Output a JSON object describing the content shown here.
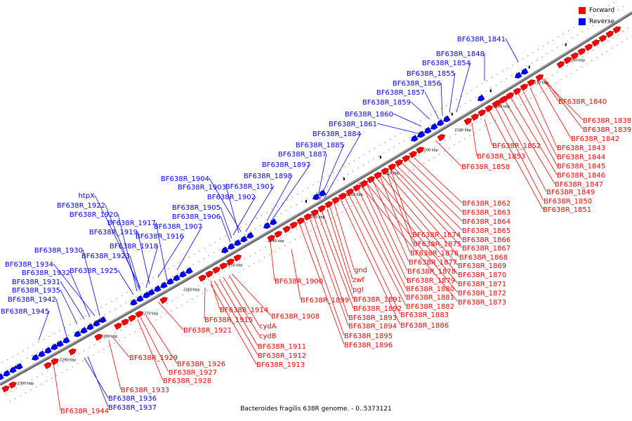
{
  "caption": "Bacteroides fragilis 638R genome. - 0..5373121",
  "legend": [
    {
      "label": "Forward",
      "color": "#ff0000"
    },
    {
      "label": "Reverse",
      "color": "#0000ff"
    }
  ],
  "colors": {
    "forward": "#ff0000",
    "reverse": "#0000ff",
    "forward_dark": "#aa0000",
    "reverse_dark": "#0000a0",
    "axis": "#777777"
  },
  "ticks": [
    "2160 kbp",
    "2170 kbp",
    "2180 kbp",
    "2190 kbp",
    "2200 kbp",
    "2210 kbp",
    "2220 kbp",
    "2230 kbp",
    "2240 kbp",
    "2250 kbp",
    "2260 kbp",
    "2270 kbp",
    "2280 kbp",
    "2290 kbp",
    "2300 kbp"
  ],
  "reverse_labels": [
    "BF638R_1841",
    "BF638R_1848",
    "BF638R_1854",
    "BF638R_1855",
    "BF638R_1856",
    "BF638R_1857",
    "BF638R_1859",
    "BF638R_1860",
    "BF638R_1861",
    "BF638R_1884",
    "BF638R_1885",
    "BF638R_1887",
    "BF638R_1897",
    "BF638R_1898",
    "BF638R_1901",
    "BF638R_1904",
    "BF638R_1903",
    "BF638R_1902",
    "BF638R_1905",
    "BF638R_1906",
    "htpX",
    "BF638R_1922",
    "BF638R_1920",
    "BF638R_1917",
    "BF638R_1907",
    "BF638R_1919",
    "BF638R_1916",
    "BF638R_1918",
    "BF638R_1923",
    "BF638R_1930",
    "BF638R_1925",
    "BF638R_1934",
    "BF638R_1932",
    "BF638R_1931",
    "BF638R_1935",
    "BF638R_1942",
    "BF638R_1945",
    "BF638R_1936",
    "BF638R_1937"
  ],
  "forward_labels": [
    "BF638R_1840",
    "BF638R_1838",
    "BF638R_1839",
    "BF638R_1842",
    "BF638R_1852",
    "BF638R_1843",
    "BF638R_1853",
    "BF638R_1844",
    "BF638R_1858",
    "BF638R_1845",
    "BF638R_1846",
    "BF638R_1847",
    "BF638R_1849",
    "BF638R_1850",
    "BF638R_1851",
    "BF638R_1862",
    "BF638R_1863",
    "BF638R_1864",
    "BF638R_1865",
    "BF638R_1874",
    "BF638R_1866",
    "BF638R_1875",
    "BF638R_1867",
    "BF638R_1876",
    "BF638R_1868",
    "BF638R_1877",
    "BF638R_1869",
    "gnd",
    "BF638R_1878",
    "BF638R_1870",
    "zwf",
    "BF638R_1879",
    "BF638R_1871",
    "BF638R_1900",
    "pgl",
    "BF638R_1880",
    "BF638R_1872",
    "BF638R_1899",
    "BF638R_1891",
    "BF638R_1881",
    "BF638R_1873",
    "BF638R_1892",
    "BF638R_1882",
    "BF638R_1914",
    "BF638R_1908",
    "BF638R_1893",
    "BF638R_1883",
    "BF638R_1915",
    "cydA",
    "BF638R_1894",
    "BF638R_1886",
    "BF638R_1921",
    "BF638R_1895",
    "cydB",
    "BF638R_1911",
    "BF638R_1896",
    "BF638R_1912",
    "BF638R_1929",
    "BF638R_1926",
    "BF638R_1913",
    "BF638R_1927",
    "BF638R_1928",
    "BF638R_1933",
    "BF638R_1944"
  ]
}
